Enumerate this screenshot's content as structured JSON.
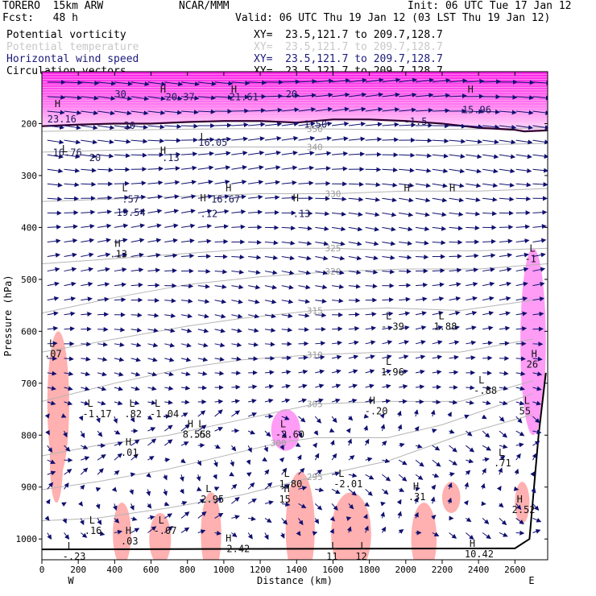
{
  "header": {
    "model": "TORERO  15km ARW",
    "org": "NCAR/MMM",
    "init": "Init: 06 UTC Tue 17 Jan 12",
    "fcst": "Fcst:   48 h",
    "valid": "Valid: 06 UTC Thu 19 Jan 12 (03 LST Thu 19 Jan 12)",
    "fields": [
      {
        "name": "Potential vorticity",
        "xy": "XY=  23.5,121.7 to 209.7,128.7",
        "color": "#000000"
      },
      {
        "name": "Potential temperature",
        "xy": "XY=  23.5,121.7 to 209.7,128.7",
        "color": "#c8c8c8"
      },
      {
        "name": "Horizontal wind speed",
        "xy": "XY=  23.5,121.7 to 209.7,128.7",
        "color": "#1a1a7a"
      },
      {
        "name": "Circulation vectors",
        "xy": "XY=  23.5,121.7 to 209.7,128.7",
        "color": "#000000"
      }
    ]
  },
  "chart_data": {
    "type": "cross-section",
    "xlabel": "Distance (km)",
    "ylabel": "Pressure (hPa)",
    "x_ticks": [
      0,
      200,
      400,
      600,
      800,
      1000,
      1200,
      1400,
      1600,
      1800,
      2000,
      2200,
      2400,
      2600
    ],
    "y_ticks": [
      200,
      300,
      400,
      500,
      600,
      700,
      800,
      900,
      1000
    ],
    "xlim": [
      0,
      2780
    ],
    "ylim": [
      100,
      1040
    ],
    "left_end_label": "W",
    "right_end_label": "E",
    "theta_contours": [
      {
        "label": "295",
        "pts": [
          [
            0,
            965
          ],
          [
            300,
            960
          ],
          [
            700,
            940
          ],
          [
            1100,
            915
          ],
          [
            1500,
            880
          ],
          [
            1900,
            850
          ],
          [
            2300,
            800
          ],
          [
            2700,
            760
          ]
        ]
      },
      {
        "label": "300",
        "pts": [
          [
            0,
            905
          ],
          [
            300,
            890
          ],
          [
            700,
            865
          ],
          [
            1000,
            840
          ],
          [
            1300,
            815
          ],
          [
            1500,
            805
          ],
          [
            1900,
            805
          ],
          [
            2200,
            780
          ],
          [
            2700,
            720
          ]
        ]
      },
      {
        "label": "305",
        "pts": [
          [
            0,
            840
          ],
          [
            300,
            820
          ],
          [
            700,
            800
          ],
          [
            1100,
            770
          ],
          [
            1500,
            740
          ],
          [
            1900,
            735
          ],
          [
            2300,
            735
          ],
          [
            2700,
            695
          ]
        ]
      },
      {
        "label": "310",
        "pts": [
          [
            0,
            735
          ],
          [
            400,
            700
          ],
          [
            800,
            670
          ],
          [
            1100,
            655
          ],
          [
            1500,
            645
          ],
          [
            1900,
            640
          ],
          [
            2300,
            640
          ],
          [
            2700,
            615
          ]
        ]
      },
      {
        "label": "315",
        "pts": [
          [
            0,
            640
          ],
          [
            400,
            615
          ],
          [
            800,
            590
          ],
          [
            1100,
            575
          ],
          [
            1500,
            560
          ],
          [
            1900,
            555
          ],
          [
            2300,
            560
          ],
          [
            2700,
            540
          ]
        ]
      },
      {
        "label": "320",
        "pts": [
          [
            0,
            565
          ],
          [
            400,
            535
          ],
          [
            800,
            510
          ],
          [
            1200,
            495
          ],
          [
            1600,
            485
          ],
          [
            2000,
            480
          ],
          [
            2400,
            480
          ],
          [
            2780,
            470
          ]
        ]
      },
      {
        "label": "325",
        "pts": [
          [
            0,
            470
          ],
          [
            400,
            460
          ],
          [
            800,
            450
          ],
          [
            1200,
            440
          ],
          [
            1600,
            440
          ],
          [
            2000,
            445
          ],
          [
            2400,
            445
          ],
          [
            2780,
            440
          ]
        ]
      },
      {
        "label": "330",
        "pts": [
          [
            0,
            350
          ],
          [
            400,
            345
          ],
          [
            800,
            340
          ],
          [
            1200,
            335
          ],
          [
            1600,
            335
          ],
          [
            2000,
            330
          ],
          [
            2400,
            330
          ],
          [
            2780,
            325
          ]
        ]
      },
      {
        "label": "340",
        "pts": [
          [
            0,
            255
          ],
          [
            500,
            250
          ],
          [
            1000,
            245
          ],
          [
            1500,
            245
          ],
          [
            2000,
            245
          ],
          [
            2500,
            240
          ],
          [
            2780,
            238
          ]
        ]
      },
      {
        "label": "350",
        "pts": [
          [
            0,
            215
          ],
          [
            500,
            212
          ],
          [
            1000,
            210
          ],
          [
            1500,
            210
          ],
          [
            2000,
            212
          ],
          [
            2500,
            210
          ],
          [
            2780,
            208
          ]
        ]
      }
    ],
    "tropopause_pv": [
      [
        0,
        205
      ],
      [
        200,
        202
      ],
      [
        400,
        200
      ],
      [
        600,
        200
      ],
      [
        800,
        197
      ],
      [
        1000,
        195
      ],
      [
        1200,
        195
      ],
      [
        1400,
        198
      ],
      [
        1600,
        192
      ],
      [
        1800,
        192
      ],
      [
        2000,
        195
      ],
      [
        2200,
        200
      ],
      [
        2400,
        208
      ],
      [
        2600,
        212
      ],
      [
        2650,
        215
      ],
      [
        2780,
        213
      ]
    ],
    "wind_speed_labels": [
      {
        "text": "30",
        "x": 400,
        "p": 150
      },
      {
        "text": "20.37",
        "x": 680,
        "p": 155
      },
      {
        "text": "21.61",
        "x": 1030,
        "p": 155
      },
      {
        "text": "20",
        "x": 1340,
        "p": 150
      },
      {
        "text": "23.16",
        "x": 30,
        "p": 198
      },
      {
        "text": "20",
        "x": 450,
        "p": 210
      },
      {
        "text": "16.05",
        "x": 860,
        "p": 243
      },
      {
        "text": "16.76",
        "x": 60,
        "p": 262
      },
      {
        "text": "20",
        "x": 260,
        "p": 272
      },
      {
        "text": ".13",
        "x": 660,
        "p": 272
      },
      {
        "text": "19.54",
        "x": 410,
        "p": 378
      },
      {
        "text": ".12",
        "x": 870,
        "p": 380
      },
      {
        "text": ".13",
        "x": 1380,
        "p": 380
      },
      {
        "text": ".57",
        "x": 440,
        "p": 352
      },
      {
        "text": "16.67",
        "x": 930,
        "p": 352
      },
      {
        "text": "15.96",
        "x": 2310,
        "p": 180
      },
      {
        "text": "-1.5",
        "x": 1990,
        "p": 202
      },
      {
        "text": "1.50",
        "x": 1440,
        "p": 208
      }
    ],
    "extrema": [
      {
        "type": "H",
        "x": 70,
        "p": 168,
        "value": ""
      },
      {
        "type": "H",
        "x": 650,
        "p": 140,
        "value": ""
      },
      {
        "type": "H",
        "x": 1040,
        "p": 140,
        "value": ""
      },
      {
        "type": "H",
        "x": 2340,
        "p": 140,
        "value": ""
      },
      {
        "type": "L",
        "x": 110,
        "p": 255,
        "value": ""
      },
      {
        "type": "H",
        "x": 650,
        "p": 258,
        "value": ""
      },
      {
        "type": "L",
        "x": 870,
        "p": 232,
        "value": ""
      },
      {
        "type": "H",
        "x": 1010,
        "p": 330,
        "value": ""
      },
      {
        "type": "L",
        "x": 440,
        "p": 330,
        "value": ""
      },
      {
        "type": "H",
        "x": 870,
        "p": 350,
        "value": ""
      },
      {
        "type": "H",
        "x": 1380,
        "p": 350,
        "value": ""
      },
      {
        "type": "H",
        "x": 1990,
        "p": 330,
        "value": ""
      },
      {
        "type": "H",
        "x": 2240,
        "p": 330,
        "value": ""
      },
      {
        "type": "H",
        "x": 400,
        "p": 437,
        "value": ".13"
      },
      {
        "type": "L",
        "x": 2680,
        "p": 447,
        "value": "-1"
      },
      {
        "type": "L",
        "x": 1890,
        "p": 577,
        "value": "-.39"
      },
      {
        "type": "L",
        "x": 2180,
        "p": 577,
        "value": "1.88"
      },
      {
        "type": "L",
        "x": 1890,
        "p": 665,
        "value": "1.96"
      },
      {
        "type": "L",
        "x": 2400,
        "p": 700,
        "value": "-.88"
      },
      {
        "type": "H",
        "x": 1800,
        "p": 740,
        "value": "-.20"
      },
      {
        "type": "L",
        "x": 250,
        "p": 745,
        "value": "-1.17"
      },
      {
        "type": "L",
        "x": 480,
        "p": 745,
        "value": ".82"
      },
      {
        "type": "L",
        "x": 620,
        "p": 745,
        "value": "-1.04"
      },
      {
        "type": "H",
        "x": 800,
        "p": 785,
        "value": "8.55"
      },
      {
        "type": "L",
        "x": 860,
        "p": 785,
        "value": ".68"
      },
      {
        "type": "L",
        "x": 1310,
        "p": 785,
        "value": "-2.60"
      },
      {
        "type": "H",
        "x": 460,
        "p": 820,
        "value": ".01"
      },
      {
        "type": "L",
        "x": 1330,
        "p": 880,
        "value": "1.80"
      },
      {
        "type": "L",
        "x": 1630,
        "p": 880,
        "value": "-2.01"
      },
      {
        "type": "L",
        "x": 2510,
        "p": 840,
        "value": ".71"
      },
      {
        "type": "H",
        "x": 1330,
        "p": 910,
        "value": "15"
      },
      {
        "type": "L",
        "x": 900,
        "p": 910,
        "value": "2.95"
      },
      {
        "type": "H",
        "x": 2040,
        "p": 905,
        "value": ".31"
      },
      {
        "type": "L",
        "x": 260,
        "p": 970,
        "value": ".16"
      },
      {
        "type": "L",
        "x": 640,
        "p": 970,
        "value": "-.07"
      },
      {
        "type": "H",
        "x": 460,
        "p": 990,
        "value": ".03"
      },
      {
        "type": "H",
        "x": 2610,
        "p": 930,
        "value": "2.52"
      },
      {
        "type": "H",
        "x": 1010,
        "p": 1005,
        "value": "-2.42"
      },
      {
        "type": "L",
        "x": 140,
        "p": 1020,
        "value": "-.23"
      },
      {
        "type": "H",
        "x": 2350,
        "p": 1015,
        "value": "10.42"
      },
      {
        "type": "L",
        "x": 1590,
        "p": 1020,
        "value": "11"
      },
      {
        "type": "L",
        "x": 1750,
        "p": 1020,
        "value": "12"
      },
      {
        "type": "L",
        "x": 40,
        "p": 630,
        "value": ".07"
      },
      {
        "type": "L",
        "x": 2650,
        "p": 740,
        "value": "55"
      },
      {
        "type": "H",
        "x": 2690,
        "p": 650,
        "value": "26"
      }
    ],
    "wind_vectors_note": "Horizontal wind vectors"
  }
}
